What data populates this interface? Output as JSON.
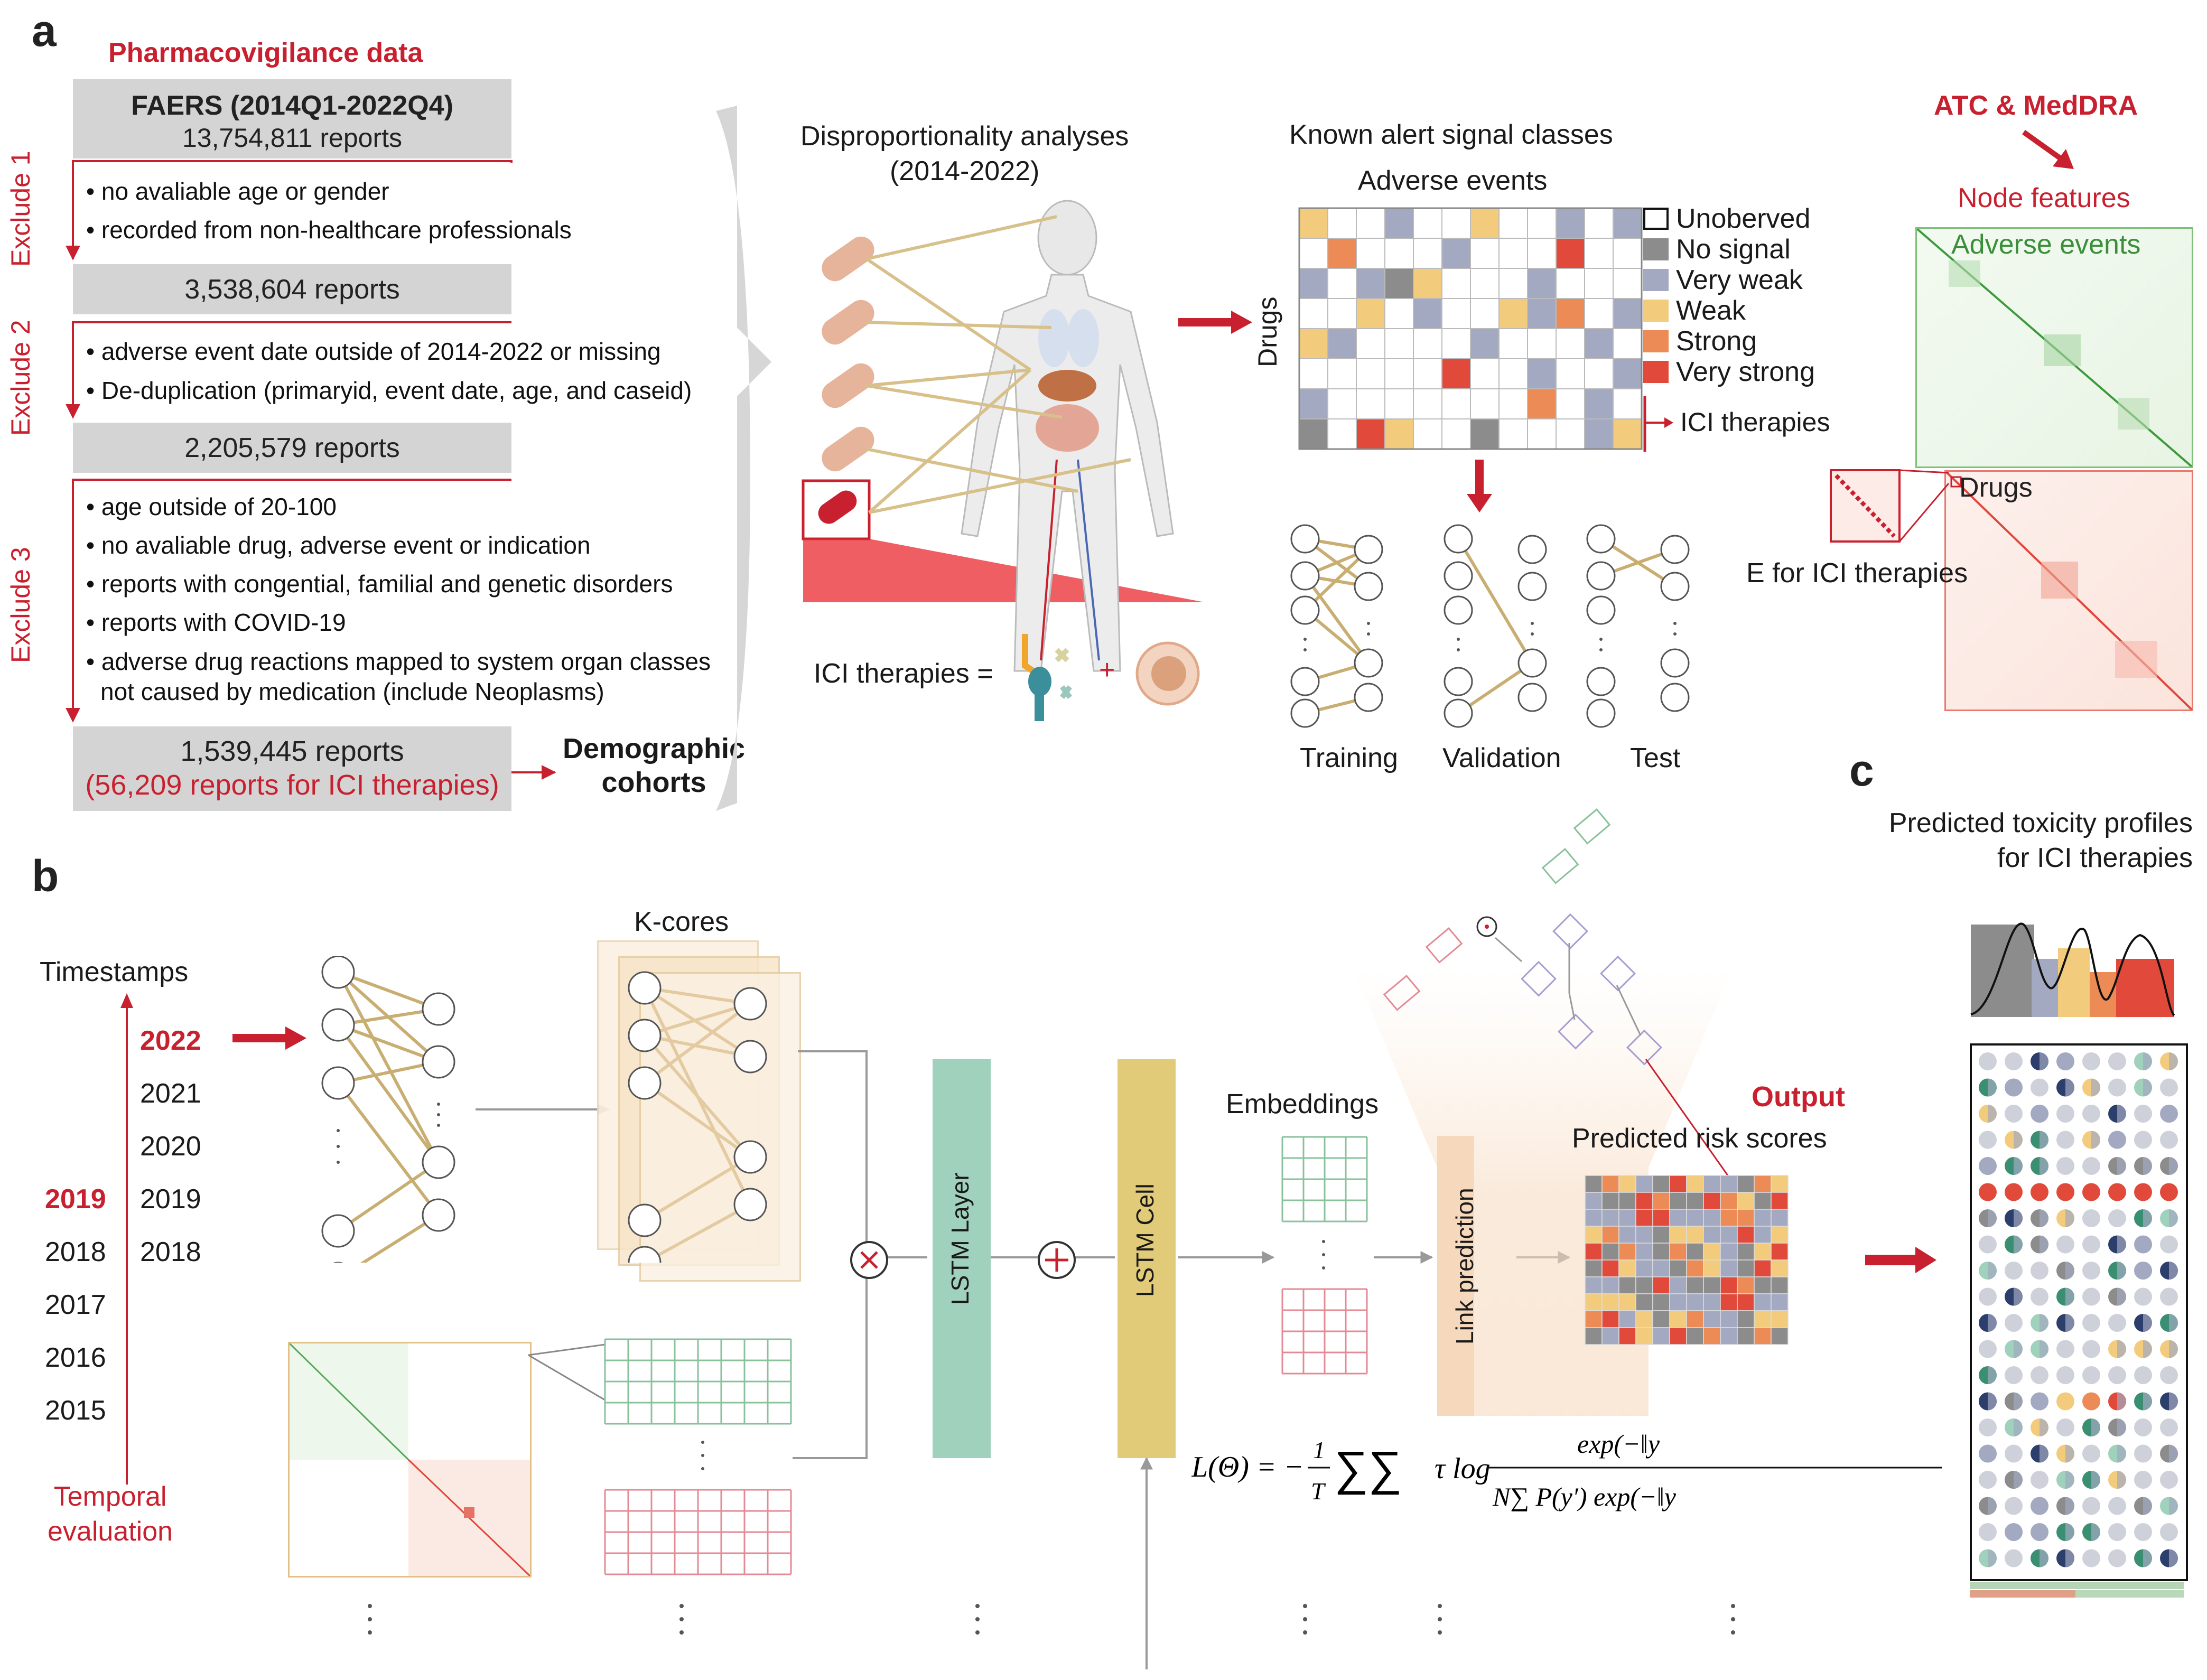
{
  "panel_a": {
    "letter": "a",
    "source_title": "Pharmacovigilance data",
    "faers_title": "FAERS (2014Q1-2022Q4)",
    "faers_reports": "13,754,811 reports",
    "exclude1_label": "Exclude 1",
    "exclude1_items": [
      "• no avaliable age or gender",
      "• recorded from non-healthcare professionals"
    ],
    "box2_reports": "3,538,604 reports",
    "exclude2_label": "Exclude 2",
    "exclude2_items": [
      "• adverse event date outside of 2014-2022 or missing",
      "• De-duplication (primaryid, event date, age, and caseid)"
    ],
    "box3_reports": "2,205,579 reports",
    "exclude3_label": "Exclude 3",
    "exclude3_items": [
      "• age outside of 20-100",
      "• no avaliable drug, adverse event or indication",
      "• reports with congential, familial and genetic disorders",
      "• reports with COVID-19",
      "• adverse drug reactions mapped to system organ classes",
      "not caused by medication (include Neoplasms)"
    ],
    "final_reports": "1,539,445 reports",
    "final_ici": "(56,209 reports for ICI therapies)",
    "demographic": [
      "Demographic",
      "cohorts"
    ],
    "dispro_title": [
      "Disproportionality analyses",
      "(2014-2022)"
    ],
    "ici_equation": "ICI therapies =",
    "plus_sign": "+",
    "known_title": "Known alert signal classes",
    "adverse_events": "Adverse events",
    "drugs_axis": "Drugs",
    "legend": [
      {
        "label": "Unoberved",
        "color": "#ffffff"
      },
      {
        "label": "No signal",
        "color": "#8c8c8c"
      },
      {
        "label": "Very weak",
        "color": "#a3a9c1"
      },
      {
        "label": "Weak",
        "color": "#f2cc7c"
      },
      {
        "label": "Strong",
        "color": "#ec8b55"
      },
      {
        "label": "Very strong",
        "color": "#e14a3a"
      }
    ],
    "ici_therapies": "ICI therapies",
    "splits": [
      "Training",
      "Validation",
      "Test"
    ],
    "atc_medra": "ATC & MedDRA",
    "node_features": "Node features",
    "adverse_events_matrix": "Adverse events",
    "drugs_matrix": "Drugs",
    "e_for_ici": "E for ICI therapies"
  },
  "panel_b": {
    "letter": "b",
    "timestamps": "Timestamps",
    "years_right": [
      "2022",
      "2021",
      "2020",
      "2019",
      "2018"
    ],
    "years_left": [
      "2019",
      "2018",
      "2017",
      "2016",
      "2015"
    ],
    "temporal": [
      "Temporal",
      "evaluation"
    ],
    "kcores": "K-cores",
    "lstm_layer": "LSTM Layer",
    "lstm_cell": "LSTM Cell",
    "embeddings": "Embeddings",
    "link_prediction": "Link prediction",
    "output": "Output",
    "predicted_risk": "Predicted risk scores",
    "loss_lhs": "L(Θ) = −",
    "loss_frac_1": "1",
    "loss_frac_T": "T",
    "loss_num": "exp(−‖y",
    "loss_den": "N∑ P(y′) exp(−‖y"
  },
  "panel_c": {
    "letter": "c",
    "title": [
      "Predicted toxicity profiles",
      "for ICI therapies"
    ]
  },
  "colors": {
    "accent_red": "#c8202f",
    "tan_edge": "#c9ae72",
    "green_lstm": "#9fd1bd",
    "yellow_cell": "#e2cb78",
    "link_pred": "#f6d9bd",
    "no_signal": "#8c8c8c",
    "very_weak": "#a3a9c1",
    "weak": "#f2cc7c",
    "strong": "#ec8b55",
    "very_strong": "#e14a3a",
    "teal": "#3a8f73",
    "navy": "#2c3e6b"
  }
}
